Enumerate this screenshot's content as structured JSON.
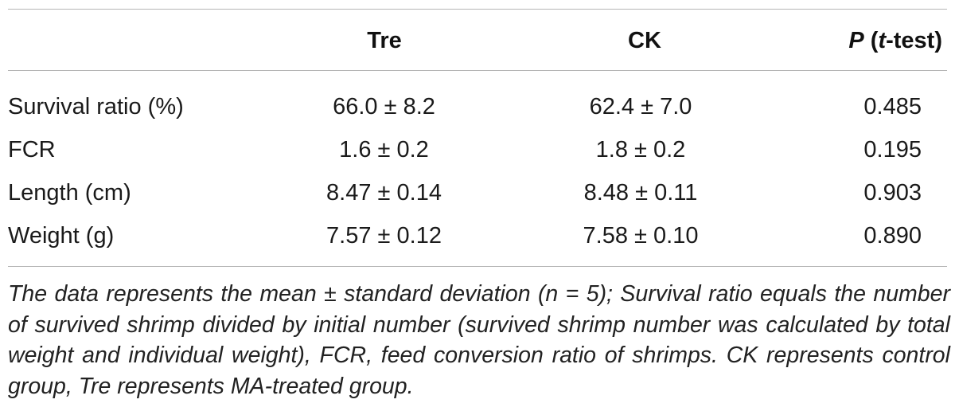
{
  "table": {
    "headers": {
      "row_label": "",
      "tre": "Tre",
      "ck": "CK",
      "p_prefix": "P",
      "p_open": " (",
      "p_t": "t",
      "p_suffix": "-test)"
    },
    "rows": [
      {
        "label": "Survival ratio (%)",
        "tre": "66.0 ± 8.2",
        "ck": "62.4 ± 7.0",
        "p": "0.485"
      },
      {
        "label": "FCR",
        "tre": "1.6 ± 0.2",
        "ck": "1.8 ± 0.2",
        "p": "0.195"
      },
      {
        "label": "Length (cm)",
        "tre": "8.47 ± 0.14",
        "ck": "8.48 ± 0.11",
        "p": "0.903"
      },
      {
        "label": "Weight (g)",
        "tre": "7.57 ± 0.12",
        "ck": "7.58 ± 0.10",
        "p": "0.890"
      }
    ],
    "footnote": "The data represents the mean ± standard deviation (n = 5); Survival ratio equals the number of survived shrimp divided by initial number (survived shrimp number was calculated by total weight and individual weight), FCR, feed conversion ratio of shrimps. CK represents control group, Tre represents MA-treated group."
  }
}
